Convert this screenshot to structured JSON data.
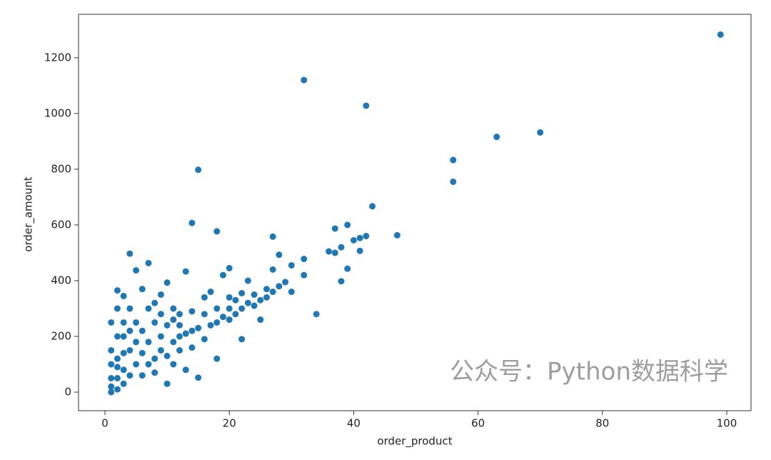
{
  "chart_data": {
    "type": "scatter",
    "xlabel": "order_product",
    "ylabel": "order_amount",
    "annotation": "公众号：Python数据科学",
    "xlim": [
      -4.25,
      103.9
    ],
    "xticks": [
      0,
      20,
      40,
      60,
      80,
      100
    ],
    "ylim": [
      -66.7,
      1356
    ],
    "yticks": [
      0,
      200,
      400,
      600,
      800,
      1000,
      1200
    ],
    "series": [
      {
        "color": "#1f77b4",
        "x": [
          99,
          32,
          42,
          15,
          63,
          70,
          56,
          56,
          43,
          14,
          18,
          47,
          27,
          42,
          41,
          40,
          39,
          37,
          38,
          36,
          37,
          41,
          39,
          38,
          34,
          32,
          32,
          30,
          28,
          27,
          4,
          5,
          7,
          13,
          10,
          9,
          2,
          3,
          6,
          22,
          15,
          18,
          25,
          20,
          24,
          26,
          28,
          30,
          29,
          21,
          22,
          19,
          20,
          23,
          16,
          17,
          14,
          12,
          11,
          13,
          10,
          8,
          6,
          4,
          2,
          1,
          1,
          2,
          1,
          1,
          2,
          3,
          3,
          4,
          5,
          5,
          6,
          7,
          8,
          9,
          10,
          11,
          12,
          13,
          14,
          15,
          16,
          17,
          18,
          19,
          20,
          21,
          22,
          23,
          24,
          25,
          26,
          27,
          2,
          3,
          4,
          1,
          2,
          3,
          5,
          6,
          7,
          8,
          9,
          11,
          12,
          1,
          2,
          3,
          4,
          7,
          8,
          9,
          10,
          11,
          12,
          14,
          16,
          18,
          20
        ],
        "values": [
          1283,
          1120,
          1028,
          798,
          916,
          932,
          833,
          755,
          667,
          607,
          577,
          563,
          558,
          560,
          553,
          545,
          600,
          587,
          520,
          505,
          500,
          507,
          443,
          398,
          280,
          478,
          420,
          455,
          493,
          440,
          497,
          437,
          463,
          433,
          393,
          350,
          365,
          345,
          370,
          190,
          52,
          120,
          260,
          300,
          350,
          370,
          380,
          360,
          395,
          330,
          355,
          420,
          445,
          400,
          340,
          360,
          290,
          280,
          300,
          80,
          130,
          250,
          220,
          300,
          300,
          250,
          0,
          10,
          100,
          150,
          50,
          80,
          200,
          150,
          100,
          250,
          60,
          180,
          120,
          200,
          30,
          180,
          150,
          210,
          160,
          230,
          190,
          240,
          250,
          270,
          260,
          280,
          300,
          320,
          310,
          330,
          340,
          360,
          120,
          30,
          60,
          50,
          200,
          250,
          180,
          140,
          100,
          70,
          150,
          100,
          200,
          20,
          90,
          140,
          220,
          300,
          320,
          280,
          240,
          260,
          240,
          220,
          280,
          300,
          340
        ]
      }
    ]
  }
}
